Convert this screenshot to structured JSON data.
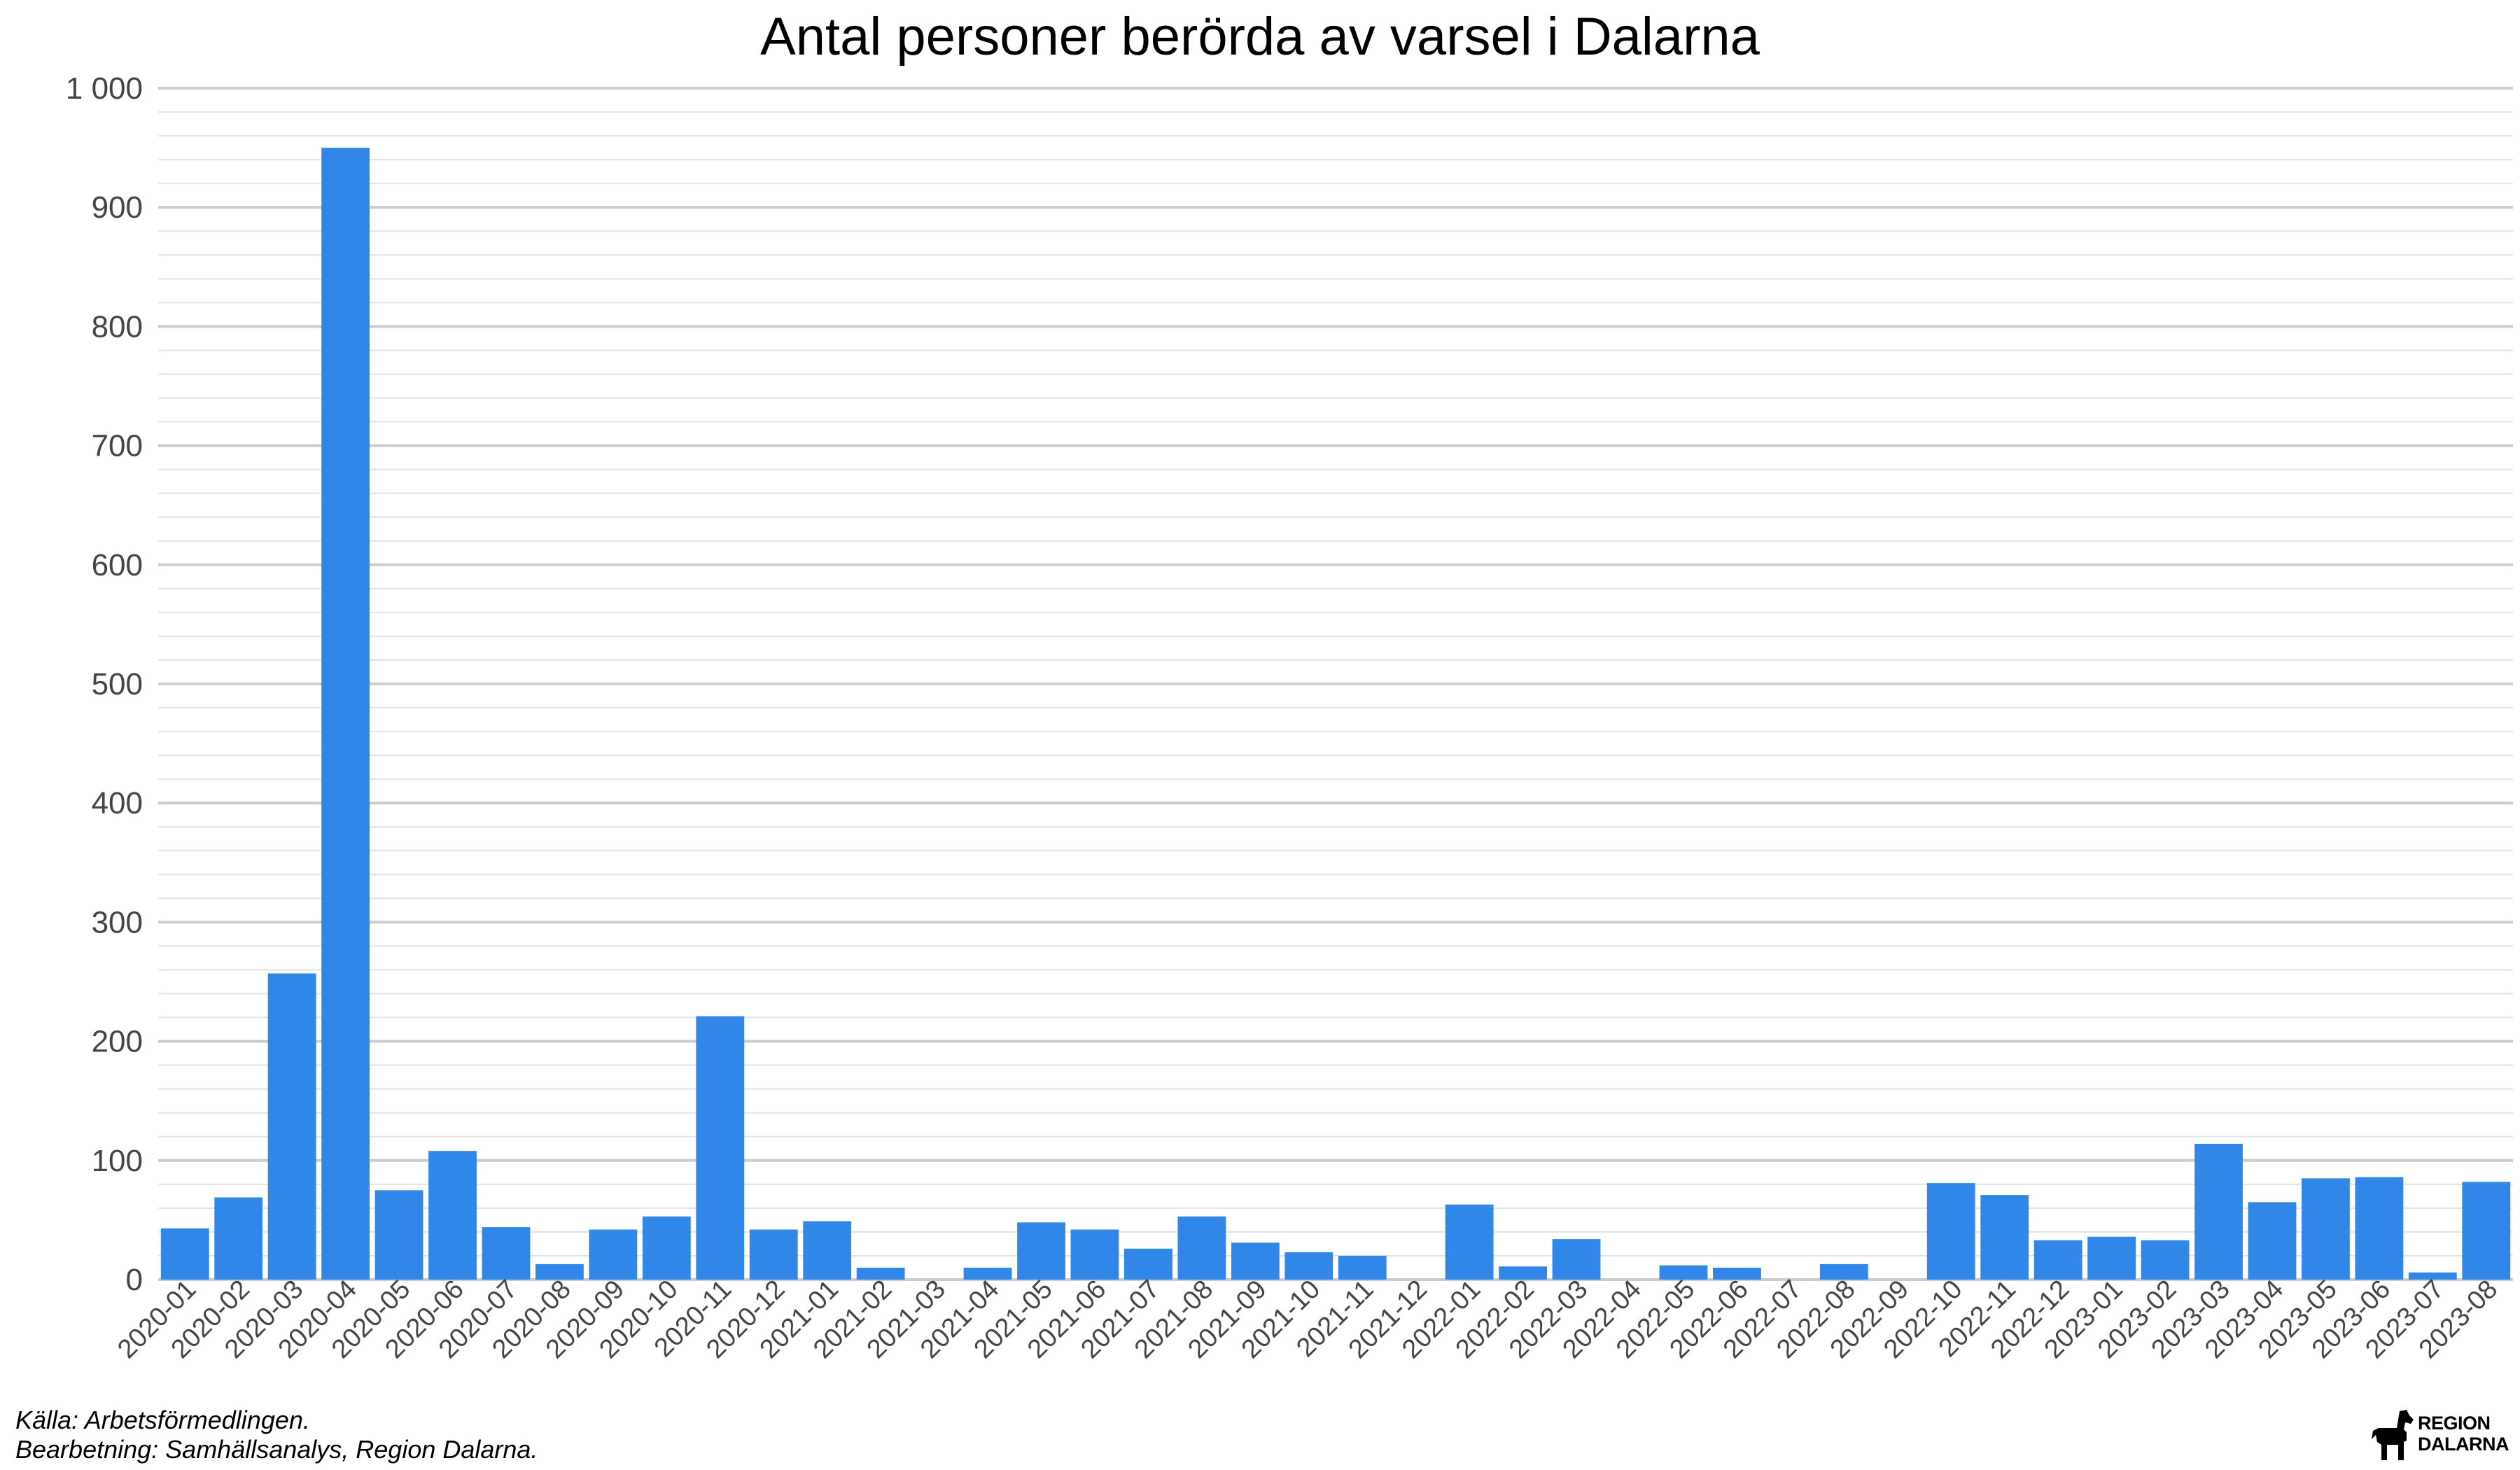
{
  "chart_data": {
    "type": "bar",
    "title": "Antal personer berörda av varsel i Dalarna",
    "xlabel": "",
    "ylabel": "",
    "ylim": [
      0,
      1000
    ],
    "yticks": [
      0,
      100,
      200,
      300,
      400,
      500,
      600,
      700,
      800,
      900,
      1000
    ],
    "ytick_labels": [
      "0",
      "100",
      "200",
      "300",
      "400",
      "500",
      "600",
      "700",
      "800",
      "900",
      "1 000"
    ],
    "grid": true,
    "legend": "none",
    "bar_color": "#3087e8",
    "categories": [
      "2020-01",
      "2020-02",
      "2020-03",
      "2020-04",
      "2020-05",
      "2020-06",
      "2020-07",
      "2020-08",
      "2020-09",
      "2020-10",
      "2020-11",
      "2020-12",
      "2021-01",
      "2021-02",
      "2021-03",
      "2021-04",
      "2021-05",
      "2021-06",
      "2021-07",
      "2021-08",
      "2021-09",
      "2021-10",
      "2021-11",
      "2021-12",
      "2022-01",
      "2022-02",
      "2022-03",
      "2022-04",
      "2022-05",
      "2022-06",
      "2022-07",
      "2022-08",
      "2022-09",
      "2022-10",
      "2022-11",
      "2022-12",
      "2023-01",
      "2023-02",
      "2023-03",
      "2023-04",
      "2023-05",
      "2023-06",
      "2023-07",
      "2023-08"
    ],
    "values": [
      43,
      69,
      257,
      950,
      75,
      108,
      44,
      13,
      42,
      53,
      221,
      42,
      49,
      10,
      0,
      10,
      48,
      42,
      26,
      53,
      31,
      23,
      20,
      0,
      63,
      11,
      34,
      0,
      12,
      10,
      0,
      13,
      0,
      81,
      71,
      33,
      36,
      33,
      114,
      65,
      85,
      86,
      6,
      82
    ]
  },
  "footer": {
    "source": "Källa: Arbetsförmedlingen.",
    "processing": "Bearbetning: Samhällsanalys, Region Dalarna."
  },
  "logo": {
    "text": "REGION\nDALARNA",
    "icon": "dala-horse-icon"
  }
}
